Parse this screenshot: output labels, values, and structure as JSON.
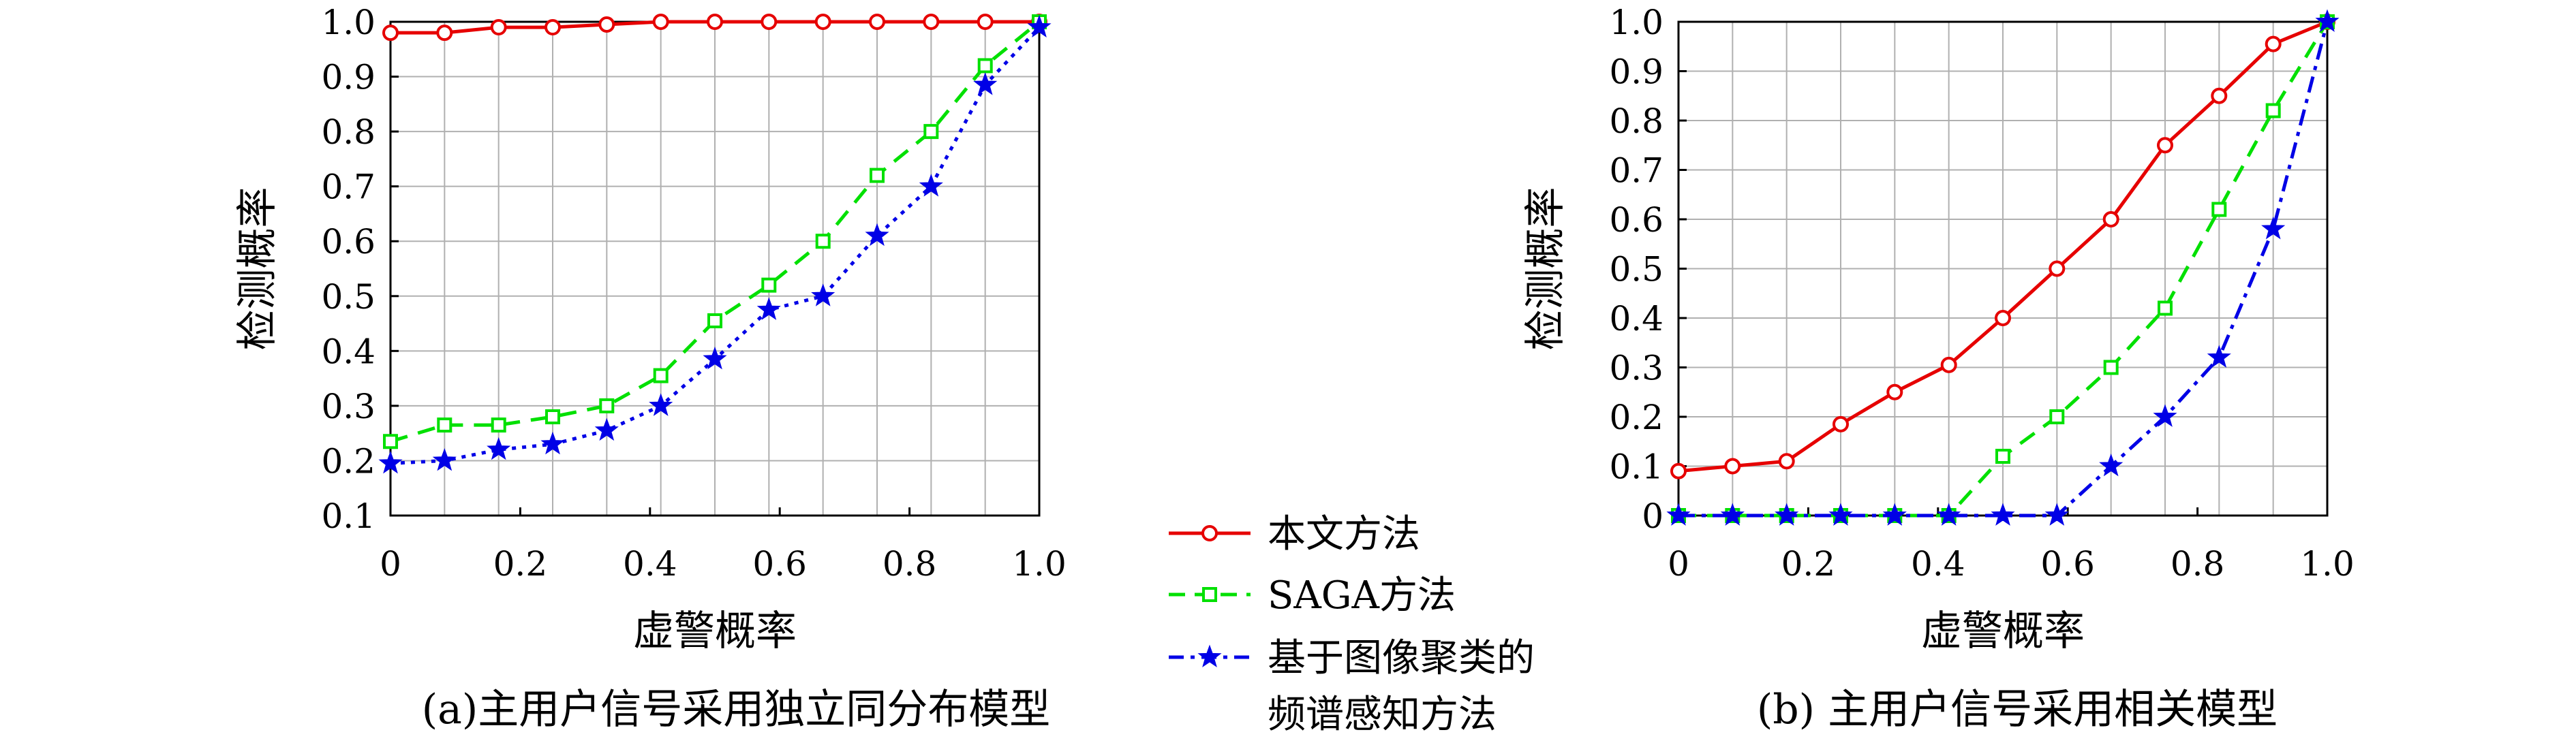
{
  "colors": {
    "series_0": "#e60000",
    "series_1": "#00e000",
    "series_2": "#0000e6",
    "grid": "#b0b0b0",
    "axis": "#000000"
  },
  "legend": {
    "items": [
      {
        "label": "本文方法",
        "marker": "circle",
        "style": "solid"
      },
      {
        "label": "SAGA方法",
        "marker": "square",
        "style": "dashed"
      },
      {
        "label_lines": [
          "基于图像聚类的",
          "频谱感知方法"
        ],
        "marker": "star",
        "style": "dashdot"
      }
    ]
  },
  "chart_data": [
    {
      "type": "line",
      "caption": "(a)主用户信号采用独立同分布模型",
      "xlabel": "虚警概率",
      "ylabel": "检测概率",
      "xlim": [
        0,
        1
      ],
      "ylim": [
        0.1,
        1.0
      ],
      "grid": true,
      "xticks": [
        0,
        0.2,
        0.4,
        0.6,
        0.8,
        1.0
      ],
      "xtick_labels": [
        "0",
        "0.2",
        "0.4",
        "0.6",
        "0.8",
        "1.0"
      ],
      "yticks": [
        0.1,
        0.2,
        0.3,
        0.4,
        0.5,
        0.6,
        0.7,
        0.8,
        0.9,
        1.0
      ],
      "ytick_labels": [
        "0.1",
        "0.2",
        "0.3",
        "0.4",
        "0.5",
        "0.6",
        "0.7",
        "0.8",
        "0.9",
        "1.0"
      ],
      "x": [
        0,
        0.0833,
        0.1667,
        0.25,
        0.3333,
        0.4167,
        0.5,
        0.5833,
        0.6667,
        0.75,
        0.8333,
        0.9167,
        1.0
      ],
      "series": [
        {
          "values": [
            0.98,
            0.98,
            0.99,
            0.99,
            0.995,
            1.0,
            1.0,
            1.0,
            1.0,
            1.0,
            1.0,
            1.0,
            1.0
          ]
        },
        {
          "values": [
            0.235,
            0.265,
            0.265,
            0.28,
            0.3,
            0.355,
            0.455,
            0.52,
            0.6,
            0.72,
            0.8,
            0.92,
            1.0
          ]
        },
        {
          "values": [
            0.195,
            0.2,
            0.22,
            0.23,
            0.255,
            0.3,
            0.385,
            0.475,
            0.5,
            0.61,
            0.7,
            0.885,
            0.99
          ]
        }
      ]
    },
    {
      "type": "line",
      "caption": "(b) 主用户信号采用相关模型",
      "xlabel": "虚警概率",
      "ylabel": "检测概率",
      "xlim": [
        0,
        1
      ],
      "ylim": [
        0,
        1.0
      ],
      "grid": true,
      "xticks": [
        0,
        0.2,
        0.4,
        0.6,
        0.8,
        1.0
      ],
      "xtick_labels": [
        "0",
        "0.2",
        "0.4",
        "0.6",
        "0.8",
        "1.0"
      ],
      "yticks": [
        0,
        0.1,
        0.2,
        0.3,
        0.4,
        0.5,
        0.6,
        0.7,
        0.8,
        0.9,
        1.0
      ],
      "ytick_labels": [
        "0",
        "0.1",
        "0.2",
        "0.3",
        "0.4",
        "0.5",
        "0.6",
        "0.7",
        "0.8",
        "0.9",
        "1.0"
      ],
      "x": [
        0,
        0.0833,
        0.1667,
        0.25,
        0.3333,
        0.4167,
        0.5,
        0.5833,
        0.6667,
        0.75,
        0.8333,
        0.9167,
        1.0
      ],
      "series": [
        {
          "values": [
            0.09,
            0.1,
            0.11,
            0.185,
            0.25,
            0.305,
            0.4,
            0.5,
            0.6,
            0.75,
            0.85,
            0.955,
            1.0
          ]
        },
        {
          "values": [
            0,
            0,
            0,
            0,
            0,
            0,
            0.12,
            0.2,
            0.3,
            0.42,
            0.62,
            0.82,
            1.0
          ]
        },
        {
          "values": [
            0,
            0,
            0,
            0,
            0,
            0,
            0,
            0,
            0.1,
            0.2,
            0.32,
            0.58,
            1.0
          ]
        }
      ]
    }
  ]
}
